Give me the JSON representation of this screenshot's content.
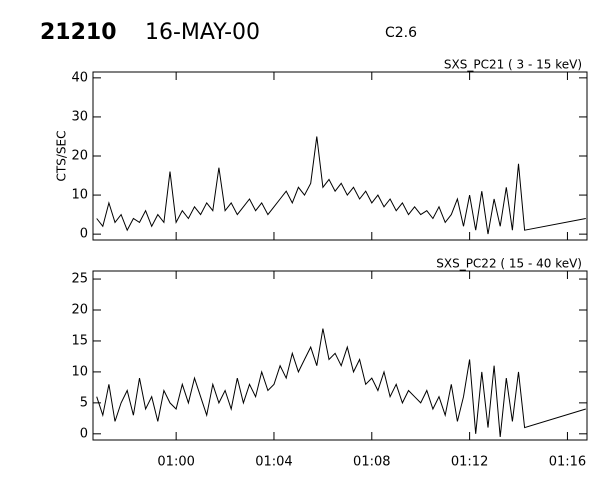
{
  "header": {
    "event": "21210",
    "date": "16-MAY-00",
    "class": "C2.6"
  },
  "chart_data": [
    {
      "type": "line",
      "title": "SXS_PC21  (  3 - 15 keV)",
      "ylabel": "CTS/SEC",
      "color": "#000000",
      "xlim": [
        56.6,
        76.8
      ],
      "ylim": [
        -1.5,
        41.5
      ],
      "yticks": [
        0,
        10,
        20,
        30,
        40
      ],
      "x": [
        56.75,
        57,
        57.25,
        57.5,
        57.75,
        58,
        58.25,
        58.5,
        58.75,
        59,
        59.25,
        59.5,
        59.75,
        60,
        60.25,
        60.5,
        60.75,
        61,
        61.25,
        61.5,
        61.75,
        62,
        62.25,
        62.5,
        62.75,
        63,
        63.25,
        63.5,
        63.75,
        64,
        64.25,
        64.5,
        64.75,
        65,
        65.25,
        65.5,
        65.75,
        66,
        66.25,
        66.5,
        66.75,
        67,
        67.25,
        67.5,
        67.75,
        68,
        68.25,
        68.5,
        68.75,
        69,
        69.25,
        69.5,
        69.75,
        70,
        70.25,
        70.5,
        70.75,
        71,
        71.25,
        71.5,
        71.75,
        72,
        72.25,
        72.5,
        72.75,
        73,
        73.25,
        73.5,
        73.75,
        74,
        74.25,
        76.75
      ],
      "values": [
        4,
        2,
        8,
        3,
        5,
        1,
        4,
        3,
        6,
        2,
        5,
        3,
        16,
        3,
        6,
        4,
        7,
        5,
        8,
        6,
        17,
        6,
        8,
        5,
        7,
        9,
        6,
        8,
        5,
        7,
        9,
        11,
        8,
        12,
        10,
        13,
        25,
        12,
        14,
        11,
        13,
        10,
        12,
        9,
        11,
        8,
        10,
        7,
        9,
        6,
        8,
        5,
        7,
        5,
        6,
        4,
        7,
        3,
        5,
        9,
        2,
        10,
        1,
        11,
        0,
        9,
        2,
        12,
        1,
        18,
        1,
        4
      ]
    },
    {
      "type": "line",
      "title": "SXS_PC22  ( 15 - 40 keV)",
      "color": "#000000",
      "xlim": [
        56.6,
        76.8
      ],
      "ylim": [
        -1,
        26.3
      ],
      "yticks": [
        0,
        5,
        10,
        15,
        20,
        25
      ],
      "xticks": [
        {
          "value": 60,
          "label": "01:00"
        },
        {
          "value": 64,
          "label": "01:04"
        },
        {
          "value": 68,
          "label": "01:08"
        },
        {
          "value": 72,
          "label": "01:12"
        },
        {
          "value": 76,
          "label": "01:16"
        }
      ],
      "x": [
        56.75,
        57,
        57.25,
        57.5,
        57.75,
        58,
        58.25,
        58.5,
        58.75,
        59,
        59.25,
        59.5,
        59.75,
        60,
        60.25,
        60.5,
        60.75,
        61,
        61.25,
        61.5,
        61.75,
        62,
        62.25,
        62.5,
        62.75,
        63,
        63.25,
        63.5,
        63.75,
        64,
        64.25,
        64.5,
        64.75,
        65,
        65.25,
        65.5,
        65.75,
        66,
        66.25,
        66.5,
        66.75,
        67,
        67.25,
        67.5,
        67.75,
        68,
        68.25,
        68.5,
        68.75,
        69,
        69.25,
        69.5,
        69.75,
        70,
        70.25,
        70.5,
        70.75,
        71,
        71.25,
        71.5,
        71.75,
        72,
        72.25,
        72.5,
        72.75,
        73,
        73.25,
        73.5,
        73.75,
        74,
        74.25,
        76.75
      ],
      "values": [
        6,
        3,
        8,
        2,
        5,
        7,
        3,
        9,
        4,
        6,
        2,
        7,
        5,
        4,
        8,
        5,
        9,
        6,
        3,
        8,
        5,
        7,
        4,
        9,
        5,
        8,
        6,
        10,
        7,
        8,
        11,
        9,
        13,
        10,
        12,
        14,
        11,
        17,
        12,
        13,
        11,
        14,
        10,
        12,
        8,
        9,
        7,
        10,
        6,
        8,
        5,
        7,
        6,
        5,
        7,
        4,
        6,
        3,
        8,
        2,
        6,
        12,
        0,
        10,
        1,
        11,
        -0.5,
        9,
        2,
        10,
        1,
        4
      ]
    }
  ]
}
